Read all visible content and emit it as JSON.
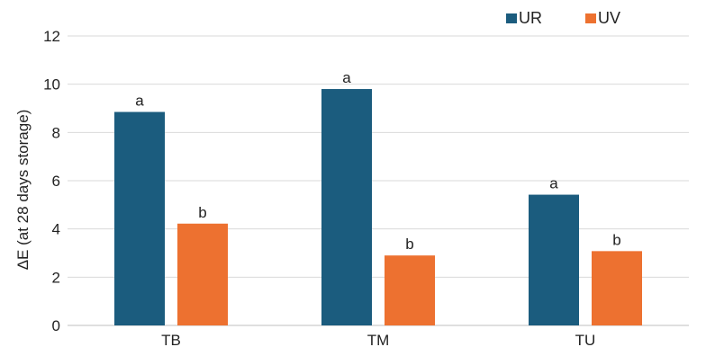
{
  "chart_data": {
    "type": "bar",
    "title": "",
    "xlabel": "",
    "ylabel": "ΔE (at 28 days storage)",
    "categories": [
      "TB",
      "TM",
      "TU"
    ],
    "ylim": [
      0,
      12
    ],
    "yticks": [
      0,
      2,
      4,
      6,
      8,
      10,
      12
    ],
    "grid": true,
    "legend_position": "top-right",
    "series": [
      {
        "name": "UR",
        "color": "#1b5c7e",
        "values": [
          8.85,
          9.8,
          5.42
        ],
        "labels": [
          "a",
          "a",
          "a"
        ]
      },
      {
        "name": "UV",
        "color": "#ed7130",
        "values": [
          4.22,
          2.9,
          3.08
        ],
        "labels": [
          "b",
          "b",
          "b"
        ]
      }
    ]
  }
}
